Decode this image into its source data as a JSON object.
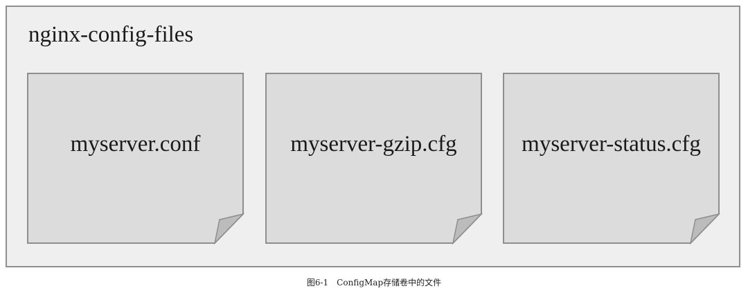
{
  "diagram": {
    "container_title": "nginx-config-files",
    "files": [
      {
        "name": "myserver.conf"
      },
      {
        "name": "myserver-gzip.cfg"
      },
      {
        "name": "myserver-status.cfg"
      }
    ],
    "caption": "图6-1　ConfigMap存储卷中的文件"
  },
  "colors": {
    "container_fill": "#efefef",
    "container_border": "#8e8e8e",
    "file_fill": "#dcdcdc",
    "file_border": "#8e8e8e",
    "fold_fill": "#bcbcbc",
    "text": "#1a1a1a"
  },
  "icons": {
    "file": "file-page-icon",
    "fold": "page-curl-icon"
  }
}
